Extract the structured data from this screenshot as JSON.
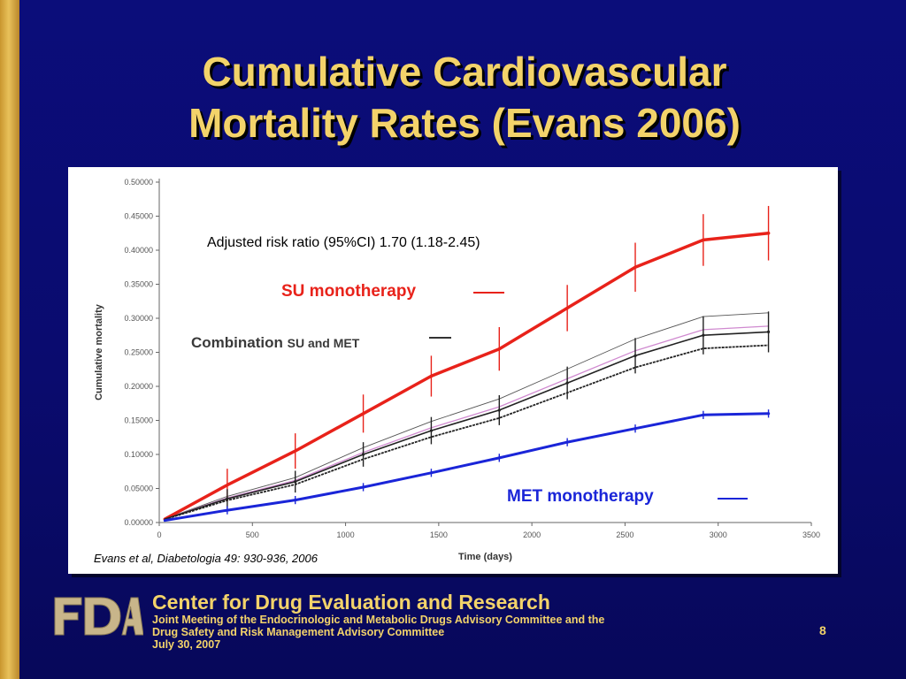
{
  "slide": {
    "title_line1": "Cumulative Cardiovascular",
    "title_line2": "Mortality Rates (Evans 2006)",
    "page_number": "8"
  },
  "footer": {
    "org": "Center for Drug Evaluation and Research",
    "line1": "Joint Meeting of the Endocrinologic and Metabolic Drugs Advisory Committee and the",
    "line2": "Drug Safety and Risk Management Advisory Committee",
    "date": "July 30, 2007",
    "logo_text": "FDA"
  },
  "colors": {
    "su": "#e8221a",
    "combo": "#222222",
    "met": "#1a25d8",
    "title": "#f3d36a"
  },
  "chart_data": {
    "type": "line",
    "xlabel": "Time (days)",
    "ylabel": "Cumulative mortality",
    "xlim": [
      0,
      3500
    ],
    "ylim": [
      0,
      0.5
    ],
    "xticks": [
      0,
      500,
      1000,
      1500,
      2000,
      2500,
      3000,
      3500
    ],
    "yticks": [
      "0.00000",
      "0.05000",
      "0.10000",
      "0.15000",
      "0.20000",
      "0.25000",
      "0.30000",
      "0.35000",
      "0.40000",
      "0.45000",
      "0.50000"
    ],
    "annotation": "Adjusted risk ratio (95%CI) 1.70 (1.18-2.45)",
    "citation": "Evans et al, Diabetologia 49: 930-936, 2006",
    "series": [
      {
        "name": "SU monotherapy",
        "x": [
          30,
          365,
          730,
          1095,
          1460,
          1825,
          2190,
          2555,
          2920,
          3270
        ],
        "y": [
          0.005,
          0.055,
          0.105,
          0.16,
          0.215,
          0.255,
          0.315,
          0.375,
          0.415,
          0.425
        ]
      },
      {
        "name": "Combination SU and MET",
        "x": [
          30,
          365,
          730,
          1095,
          1460,
          1825,
          2190,
          2555,
          2920,
          3270
        ],
        "y": [
          0.005,
          0.035,
          0.06,
          0.1,
          0.135,
          0.165,
          0.205,
          0.245,
          0.275,
          0.28
        ]
      },
      {
        "name": "MET monotherapy",
        "x": [
          30,
          365,
          730,
          1095,
          1460,
          1825,
          2190,
          2555,
          2920,
          3270
        ],
        "y": [
          0.003,
          0.018,
          0.033,
          0.052,
          0.073,
          0.095,
          0.118,
          0.138,
          0.158,
          0.16
        ]
      }
    ],
    "legend": {
      "su_label": "SU monotherapy",
      "combo_label_main": "Combination",
      "combo_label_sub": "SU and MET",
      "met_label": "MET monotherapy"
    }
  }
}
